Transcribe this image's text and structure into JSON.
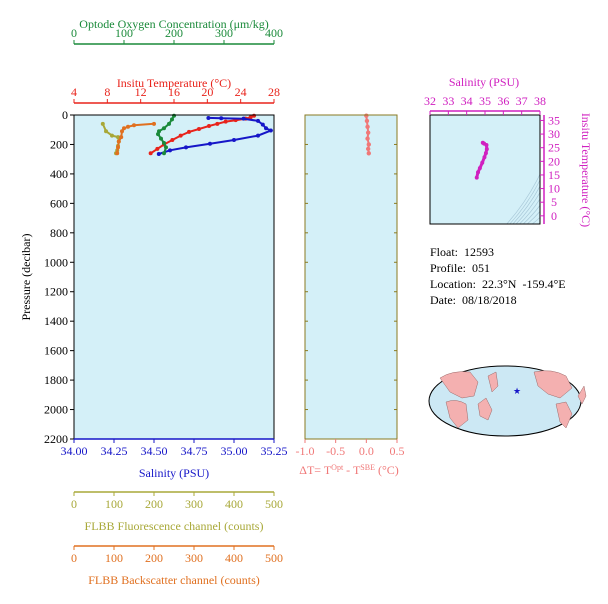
{
  "colors": {
    "oxygen": "#1a8a3a",
    "temperature": "#e8231b",
    "salinity": "#1616c8",
    "delta_t": "#f07878",
    "fluorescence": "#a8a838",
    "backscatter": "#e07020",
    "ts_axis": "#d020c0",
    "panel_bg": "#d4f0f8",
    "axis_frame": "#8a7a20",
    "map_land": "#f4b0b0",
    "map_ocean": "#cce8f4",
    "float_marker": "#1616c8"
  },
  "info": {
    "float_label": "Float:",
    "float_value": "12593",
    "profile_label": "Profile:",
    "profile_value": "051",
    "location_label": "Location:",
    "location_value": "22.3°N  -159.4°E",
    "date_label": "Date:",
    "date_value": "08/18/2018"
  },
  "map": {
    "marker_icon": "star-icon"
  },
  "chart_data": [
    {
      "type": "line",
      "title": "",
      "y_axis": {
        "label": "Pressure (decibar)",
        "range": [
          0,
          2200
        ],
        "inverted": true,
        "ticks": [
          0,
          200,
          400,
          600,
          800,
          1000,
          1200,
          1400,
          1600,
          1800,
          2000,
          2200
        ]
      },
      "axes": [
        {
          "key": "oxygen",
          "label": "Optode Oxygen Concentration (μm/kg)",
          "range": [
            0,
            400
          ],
          "ticks": [
            0,
            100,
            200,
            300,
            400
          ],
          "position": "top-1"
        },
        {
          "key": "temperature",
          "label": "Insitu Temperature (°C)",
          "range": [
            4,
            28
          ],
          "ticks": [
            4,
            8,
            12,
            16,
            20,
            24,
            28
          ],
          "position": "top-2"
        },
        {
          "key": "salinity",
          "label": "Salinity (PSU)",
          "range": [
            34.0,
            35.25
          ],
          "ticks": [
            "34.00",
            "34.25",
            "34.50",
            "34.75",
            "35.00",
            "35.25"
          ],
          "position": "bottom-1"
        },
        {
          "key": "fluorescence",
          "label": "FLBB Fluorescence channel (counts)",
          "range": [
            0,
            500
          ],
          "ticks": [
            0,
            100,
            200,
            300,
            400,
            500
          ],
          "position": "bottom-2"
        },
        {
          "key": "backscatter",
          "label": "FLBB Backscatter channel (counts)",
          "range": [
            0,
            500
          ],
          "ticks": [
            0,
            100,
            200,
            300,
            400,
            500
          ],
          "position": "bottom-3"
        }
      ],
      "series": [
        {
          "key": "temperature",
          "points": [
            [
              25.6,
              5
            ],
            [
              25.2,
              15
            ],
            [
              24.6,
              25
            ],
            [
              23.4,
              35
            ],
            [
              22.2,
              45
            ],
            [
              21.2,
              60
            ],
            [
              20.2,
              75
            ],
            [
              19.0,
              95
            ],
            [
              17.8,
              115
            ],
            [
              16.8,
              140
            ],
            [
              15.8,
              170
            ],
            [
              14.8,
              200
            ],
            [
              14.0,
              230
            ],
            [
              13.2,
              260
            ]
          ]
        },
        {
          "key": "salinity",
          "points": [
            [
              34.84,
              20
            ],
            [
              34.92,
              22
            ],
            [
              35.06,
              25
            ],
            [
              35.15,
              40
            ],
            [
              35.18,
              65
            ],
            [
              35.2,
              90
            ],
            [
              35.23,
              105
            ],
            [
              35.15,
              140
            ],
            [
              35.0,
              170
            ],
            [
              34.85,
              195
            ],
            [
              34.7,
              220
            ],
            [
              34.6,
              240
            ],
            [
              34.53,
              265
            ]
          ]
        },
        {
          "key": "oxygen",
          "points": [
            [
              200,
              5
            ],
            [
              196,
              30
            ],
            [
              190,
              60
            ],
            [
              180,
              90
            ],
            [
              170,
              110
            ],
            [
              168,
              130
            ],
            [
              174,
              160
            ],
            [
              180,
              190
            ],
            [
              184,
              220
            ],
            [
              180,
              260
            ]
          ]
        },
        {
          "key": "fluorescence",
          "points": [
            [
              72,
              60
            ],
            [
              80,
              110
            ],
            [
              95,
              140
            ],
            [
              110,
              150
            ],
            [
              112,
              180
            ],
            [
              110,
              210
            ],
            [
              108,
              240
            ],
            [
              105,
              260
            ]
          ]
        },
        {
          "key": "backscatter",
          "points": [
            [
              200,
              60
            ],
            [
              150,
              70
            ],
            [
              135,
              80
            ],
            [
              125,
              90
            ],
            [
              120,
              110
            ],
            [
              118,
              150
            ],
            [
              112,
              180
            ],
            [
              110,
              220
            ],
            [
              108,
              260
            ]
          ]
        }
      ]
    },
    {
      "type": "line",
      "title": "",
      "xlabel_prefix": "ΔT= T",
      "xlabel_sup1": "Opt",
      "xlabel_mid": " - T",
      "xlabel_sup2": "SBE",
      "xlabel_suffix": " (°C)",
      "x_range": [
        -1.0,
        0.5
      ],
      "x_ticks": [
        "-1.0",
        "-0.5",
        "0.0",
        "0.5"
      ],
      "y_range": [
        0,
        2200
      ],
      "series": [
        {
          "key": "delta_t",
          "points": [
            [
              0.0,
              5
            ],
            [
              0.01,
              40
            ],
            [
              0.02,
              80
            ],
            [
              0.03,
              120
            ],
            [
              0.02,
              160
            ],
            [
              0.04,
              200
            ],
            [
              0.03,
              230
            ],
            [
              0.04,
              260
            ]
          ]
        }
      ]
    },
    {
      "type": "scatter",
      "title": "",
      "xlabel": "Salinity (PSU)",
      "ylabel": "Insitu Temperature (°C)",
      "x_range": [
        32,
        38
      ],
      "x_ticks": [
        32,
        33,
        34,
        35,
        36,
        37,
        38
      ],
      "y_range": [
        -3,
        37
      ],
      "y_ticks": [
        0,
        5,
        10,
        15,
        20,
        25,
        30,
        35
      ],
      "series": [
        {
          "key": "ts",
          "points": [
            [
              34.55,
              14
            ],
            [
              34.62,
              16
            ],
            [
              34.72,
              17.5
            ],
            [
              34.85,
              19.5
            ],
            [
              34.97,
              21.5
            ],
            [
              35.05,
              23
            ],
            [
              35.1,
              24.5
            ],
            [
              35.08,
              26
            ],
            [
              34.95,
              26.5
            ],
            [
              34.88,
              26.8
            ]
          ]
        }
      ]
    }
  ]
}
